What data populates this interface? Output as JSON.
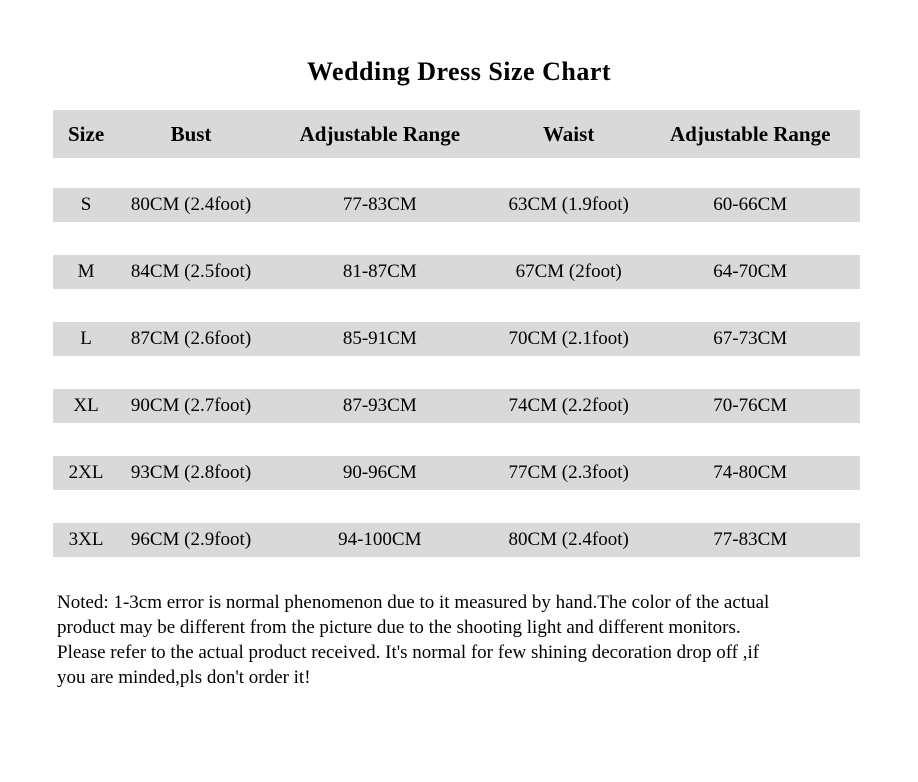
{
  "page": {
    "title": "Wedding Dress Size Chart"
  },
  "table": {
    "headers": [
      "Size",
      "Bust",
      "Adjustable Range",
      "Waist",
      "Adjustable Range"
    ],
    "rows": [
      [
        "S",
        "80CM (2.4foot)",
        "77-83CM",
        "63CM (1.9foot)",
        "60-66CM"
      ],
      [
        "M",
        "84CM (2.5foot)",
        "81-87CM",
        "67CM (2foot)",
        "64-70CM"
      ],
      [
        "L",
        "87CM (2.6foot)",
        "85-91CM",
        "70CM (2.1foot)",
        "67-73CM"
      ],
      [
        "XL",
        "90CM (2.7foot)",
        "87-93CM",
        "74CM (2.2foot)",
        "70-76CM"
      ],
      [
        "2XL",
        "93CM (2.8foot)",
        "90-96CM",
        "77CM (2.3foot)",
        "74-80CM"
      ],
      [
        "3XL",
        "96CM (2.9foot)",
        "94-100CM",
        "80CM (2.4foot)",
        "77-83CM"
      ]
    ]
  },
  "note": {
    "lines": [
      "Noted: 1-3cm error is normal phenomenon due to it measured by hand.The color of the actual",
      "product may be different from the picture due to the shooting light and different monitors.",
      "Please refer to the actual product received. It's normal for few shining decoration drop off ,if",
      "you are minded,pls don't order it!"
    ]
  },
  "colors": {
    "row_shade": "#d9d9d9",
    "text": "#000000",
    "background": "#ffffff"
  }
}
